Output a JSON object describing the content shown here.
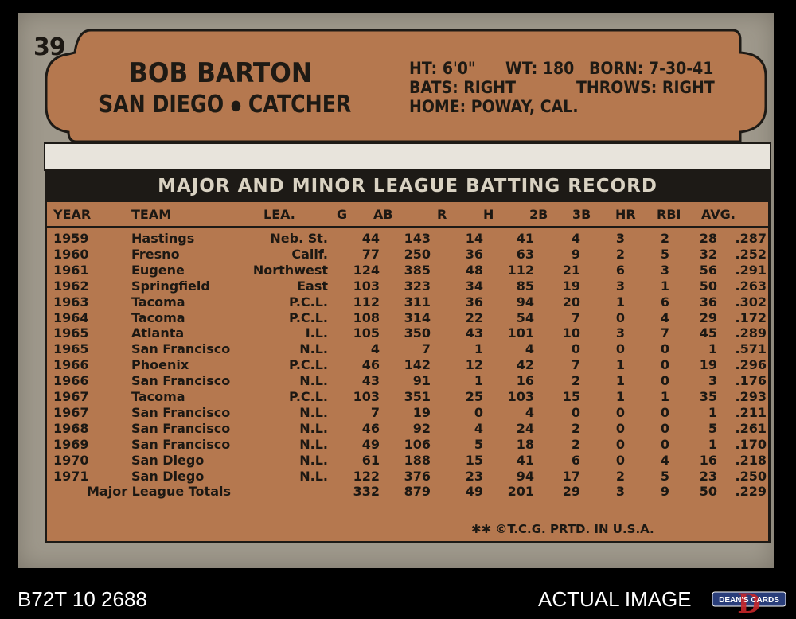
{
  "card": {
    "number": "39",
    "player_name": "BOB BARTON",
    "team": "SAN DIEGO",
    "separator": "●",
    "position": "CATCHER",
    "bio": {
      "line1_a": "HT: 6'0\"",
      "line1_b": "WT: 180",
      "line1_c": "BORN: 7-30-41",
      "line2_a": "BATS: RIGHT",
      "line2_b": "THROWS: RIGHT",
      "line3": "HOME: POWAY, CAL."
    },
    "record_title": "MAJOR AND MINOR LEAGUE BATTING RECORD",
    "headers": [
      "YEAR",
      "TEAM",
      "LEA.",
      "G",
      "AB",
      "R",
      "H",
      "2B",
      "3B",
      "HR",
      "RBI",
      "AVG."
    ],
    "rows": [
      [
        "1959",
        "Hastings",
        "Neb. St.",
        "44",
        "143",
        "14",
        "41",
        "4",
        "3",
        "2",
        "28",
        ".287"
      ],
      [
        "1960",
        "Fresno",
        "Calif.",
        "77",
        "250",
        "36",
        "63",
        "9",
        "2",
        "5",
        "32",
        ".252"
      ],
      [
        "1961",
        "Eugene",
        "Northwest",
        "124",
        "385",
        "48",
        "112",
        "21",
        "6",
        "3",
        "56",
        ".291"
      ],
      [
        "1962",
        "Springfield",
        "East",
        "103",
        "323",
        "34",
        "85",
        "19",
        "3",
        "1",
        "50",
        ".263"
      ],
      [
        "1963",
        "Tacoma",
        "P.C.L.",
        "112",
        "311",
        "36",
        "94",
        "20",
        "1",
        "6",
        "36",
        ".302"
      ],
      [
        "1964",
        "Tacoma",
        "P.C.L.",
        "108",
        "314",
        "22",
        "54",
        "7",
        "0",
        "4",
        "29",
        ".172"
      ],
      [
        "1965",
        "Atlanta",
        "I.L.",
        "105",
        "350",
        "43",
        "101",
        "10",
        "3",
        "7",
        "45",
        ".289"
      ],
      [
        "1965",
        "San Francisco",
        "N.L.",
        "4",
        "7",
        "1",
        "4",
        "0",
        "0",
        "0",
        "1",
        ".571"
      ],
      [
        "1966",
        "Phoenix",
        "P.C.L.",
        "46",
        "142",
        "12",
        "42",
        "7",
        "1",
        "0",
        "19",
        ".296"
      ],
      [
        "1966",
        "San Francisco",
        "N.L.",
        "43",
        "91",
        "1",
        "16",
        "2",
        "1",
        "0",
        "3",
        ".176"
      ],
      [
        "1967",
        "Tacoma",
        "P.C.L.",
        "103",
        "351",
        "25",
        "103",
        "15",
        "1",
        "1",
        "35",
        ".293"
      ],
      [
        "1967",
        "San Francisco",
        "N.L.",
        "7",
        "19",
        "0",
        "4",
        "0",
        "0",
        "0",
        "1",
        ".211"
      ],
      [
        "1968",
        "San Francisco",
        "N.L.",
        "46",
        "92",
        "4",
        "24",
        "2",
        "0",
        "0",
        "5",
        ".261"
      ],
      [
        "1969",
        "San Francisco",
        "N.L.",
        "49",
        "106",
        "5",
        "18",
        "2",
        "0",
        "0",
        "1",
        ".170"
      ],
      [
        "1970",
        "San Diego",
        "N.L.",
        "61",
        "188",
        "15",
        "41",
        "6",
        "0",
        "4",
        "16",
        ".218"
      ],
      [
        "1971",
        "San Diego",
        "N.L.",
        "122",
        "376",
        "23",
        "94",
        "17",
        "2",
        "5",
        "23",
        ".250"
      ]
    ],
    "totals": {
      "label": "Major League Totals",
      "values": [
        "332",
        "879",
        "49",
        "201",
        "29",
        "3",
        "9",
        "50",
        ".229"
      ]
    },
    "footer": "✱✱ ©T.C.G. PRTD. IN U.S.A."
  },
  "caption": {
    "left": "B72T 10 2688",
    "right": "ACTUAL IMAGE",
    "logo_text": "DEAN'S CARDS",
    "logo_letter": "D"
  },
  "colors": {
    "card_gray": "#9f998c",
    "card_orange": "#b5784f",
    "ink": "#1d1a16"
  }
}
